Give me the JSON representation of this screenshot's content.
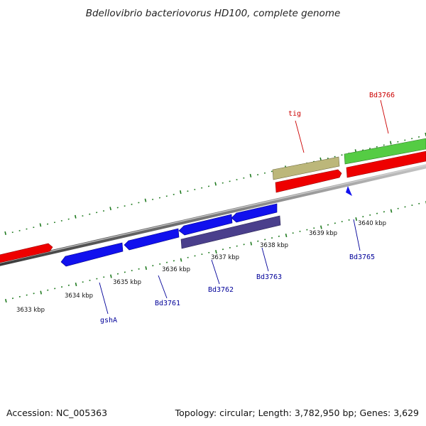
{
  "title": "Bdellovibrio bacteriovorus HD100, complete genome",
  "footer": {
    "accession": "Accession: NC_005363",
    "summary": "Topology: circular; Length: 3,782,950 bp; Genes: 3,629"
  },
  "colors": {
    "backbone": "#8a8a8a",
    "tick": "#1f7a1f",
    "forward_cds": "#ee0000",
    "reverse_cds": "#1111ee",
    "rna": "#55cc44",
    "misc": "#bcb77a",
    "reverse_misc": "#4a3f8c",
    "label_red": "#cc0000",
    "label_blue": "#000099"
  },
  "kbp_labels": [
    "3633 kbp",
    "3634 kbp",
    "3635 kbp",
    "3636 kbp",
    "3637 kbp",
    "3638 kbp",
    "3639 kbp",
    "3640 kbp"
  ],
  "gene_labels": [
    {
      "text": "gshA",
      "color": "label_blue"
    },
    {
      "text": "Bd3761",
      "color": "label_blue"
    },
    {
      "text": "Bd3762",
      "color": "label_blue"
    },
    {
      "text": "Bd3763",
      "color": "label_blue"
    },
    {
      "text": "Bd3765",
      "color": "label_blue"
    },
    {
      "text": "tig",
      "color": "label_red"
    },
    {
      "text": "Bd3766",
      "color": "label_red"
    }
  ]
}
